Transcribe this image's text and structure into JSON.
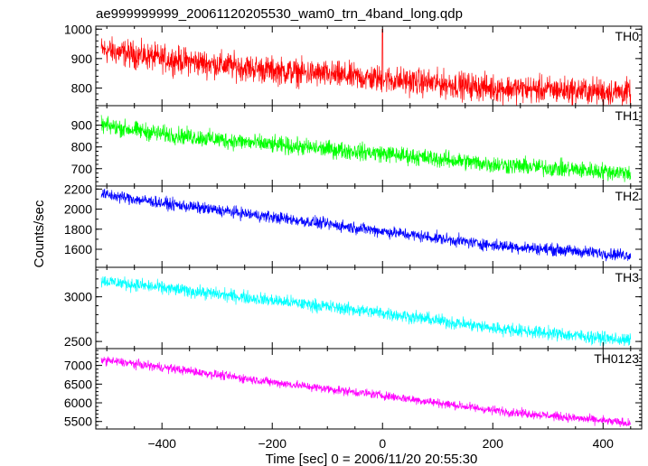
{
  "title": "ae999999999_20061120205530_wam0_trn_4band_long.qdp",
  "ylabel": "Counts/sec",
  "xlabel": "Time [sec] 0 = 2006/11/20 20:55:30",
  "chart_data": {
    "type": "line",
    "title": "ae999999999_20061120205530_wam0_trn_4band_long.qdp",
    "xlabel": "Time [sec] 0 = 2006/11/20 20:55:30",
    "ylabel": "Counts/sec",
    "xlim": [
      -520,
      470
    ],
    "x_ticks": [
      -400,
      -200,
      0,
      200,
      400
    ],
    "x_tick_labels": [
      "−400",
      "−200",
      "0",
      "200",
      "400"
    ],
    "data_x_range": [
      -510,
      450
    ],
    "grid": false,
    "panels": [
      {
        "name": "TH0",
        "color": "#ff0000",
        "ylim": [
          740,
          1010
        ],
        "y_ticks": [
          800,
          900,
          1000
        ],
        "y_tick_labels": [
          "800",
          "900",
          "1000"
        ],
        "trend": [
          [
            -510,
            930
          ],
          [
            -400,
            900
          ],
          [
            -200,
            860
          ],
          [
            0,
            830
          ],
          [
            200,
            800
          ],
          [
            450,
            785
          ]
        ],
        "noise": 35,
        "spikes": [
          [
            0,
            1000
          ]
        ]
      },
      {
        "name": "TH1",
        "color": "#00ff00",
        "ylim": [
          620,
          990
        ],
        "y_ticks": [
          700,
          800,
          900
        ],
        "y_tick_labels": [
          "700",
          "800",
          "900"
        ],
        "trend": [
          [
            -510,
            900
          ],
          [
            -400,
            860
          ],
          [
            -200,
            810
          ],
          [
            0,
            770
          ],
          [
            200,
            720
          ],
          [
            450,
            680
          ]
        ],
        "noise": 30,
        "spikes": []
      },
      {
        "name": "TH2",
        "color": "#0000ff",
        "ylim": [
          1420,
          2230
        ],
        "y_ticks": [
          1600,
          1800,
          2000,
          2200
        ],
        "y_tick_labels": [
          "1600",
          "1800",
          "2000",
          "2200"
        ],
        "trend": [
          [
            -510,
            2150
          ],
          [
            -400,
            2060
          ],
          [
            -200,
            1920
          ],
          [
            0,
            1780
          ],
          [
            200,
            1640
          ],
          [
            450,
            1540
          ]
        ],
        "noise": 45,
        "spikes": []
      },
      {
        "name": "TH3",
        "color": "#00ffff",
        "ylim": [
          2420,
          3330
        ],
        "y_ticks": [
          2500,
          3000
        ],
        "y_tick_labels": [
          "2500",
          "3000"
        ],
        "trend": [
          [
            -510,
            3180
          ],
          [
            -400,
            3100
          ],
          [
            -200,
            2960
          ],
          [
            0,
            2820
          ],
          [
            200,
            2650
          ],
          [
            450,
            2510
          ]
        ],
        "noise": 55,
        "spikes": []
      },
      {
        "name": "TH0123",
        "color": "#ff00ff",
        "ylim": [
          5300,
          7450
        ],
        "y_ticks": [
          5500,
          6000,
          6500,
          7000
        ],
        "y_tick_labels": [
          "5500",
          "6000",
          "6500",
          "7000"
        ],
        "trend": [
          [
            -510,
            7150
          ],
          [
            -400,
            6950
          ],
          [
            -200,
            6550
          ],
          [
            0,
            6200
          ],
          [
            200,
            5800
          ],
          [
            450,
            5450
          ]
        ],
        "noise": 90,
        "spikes": []
      }
    ]
  }
}
